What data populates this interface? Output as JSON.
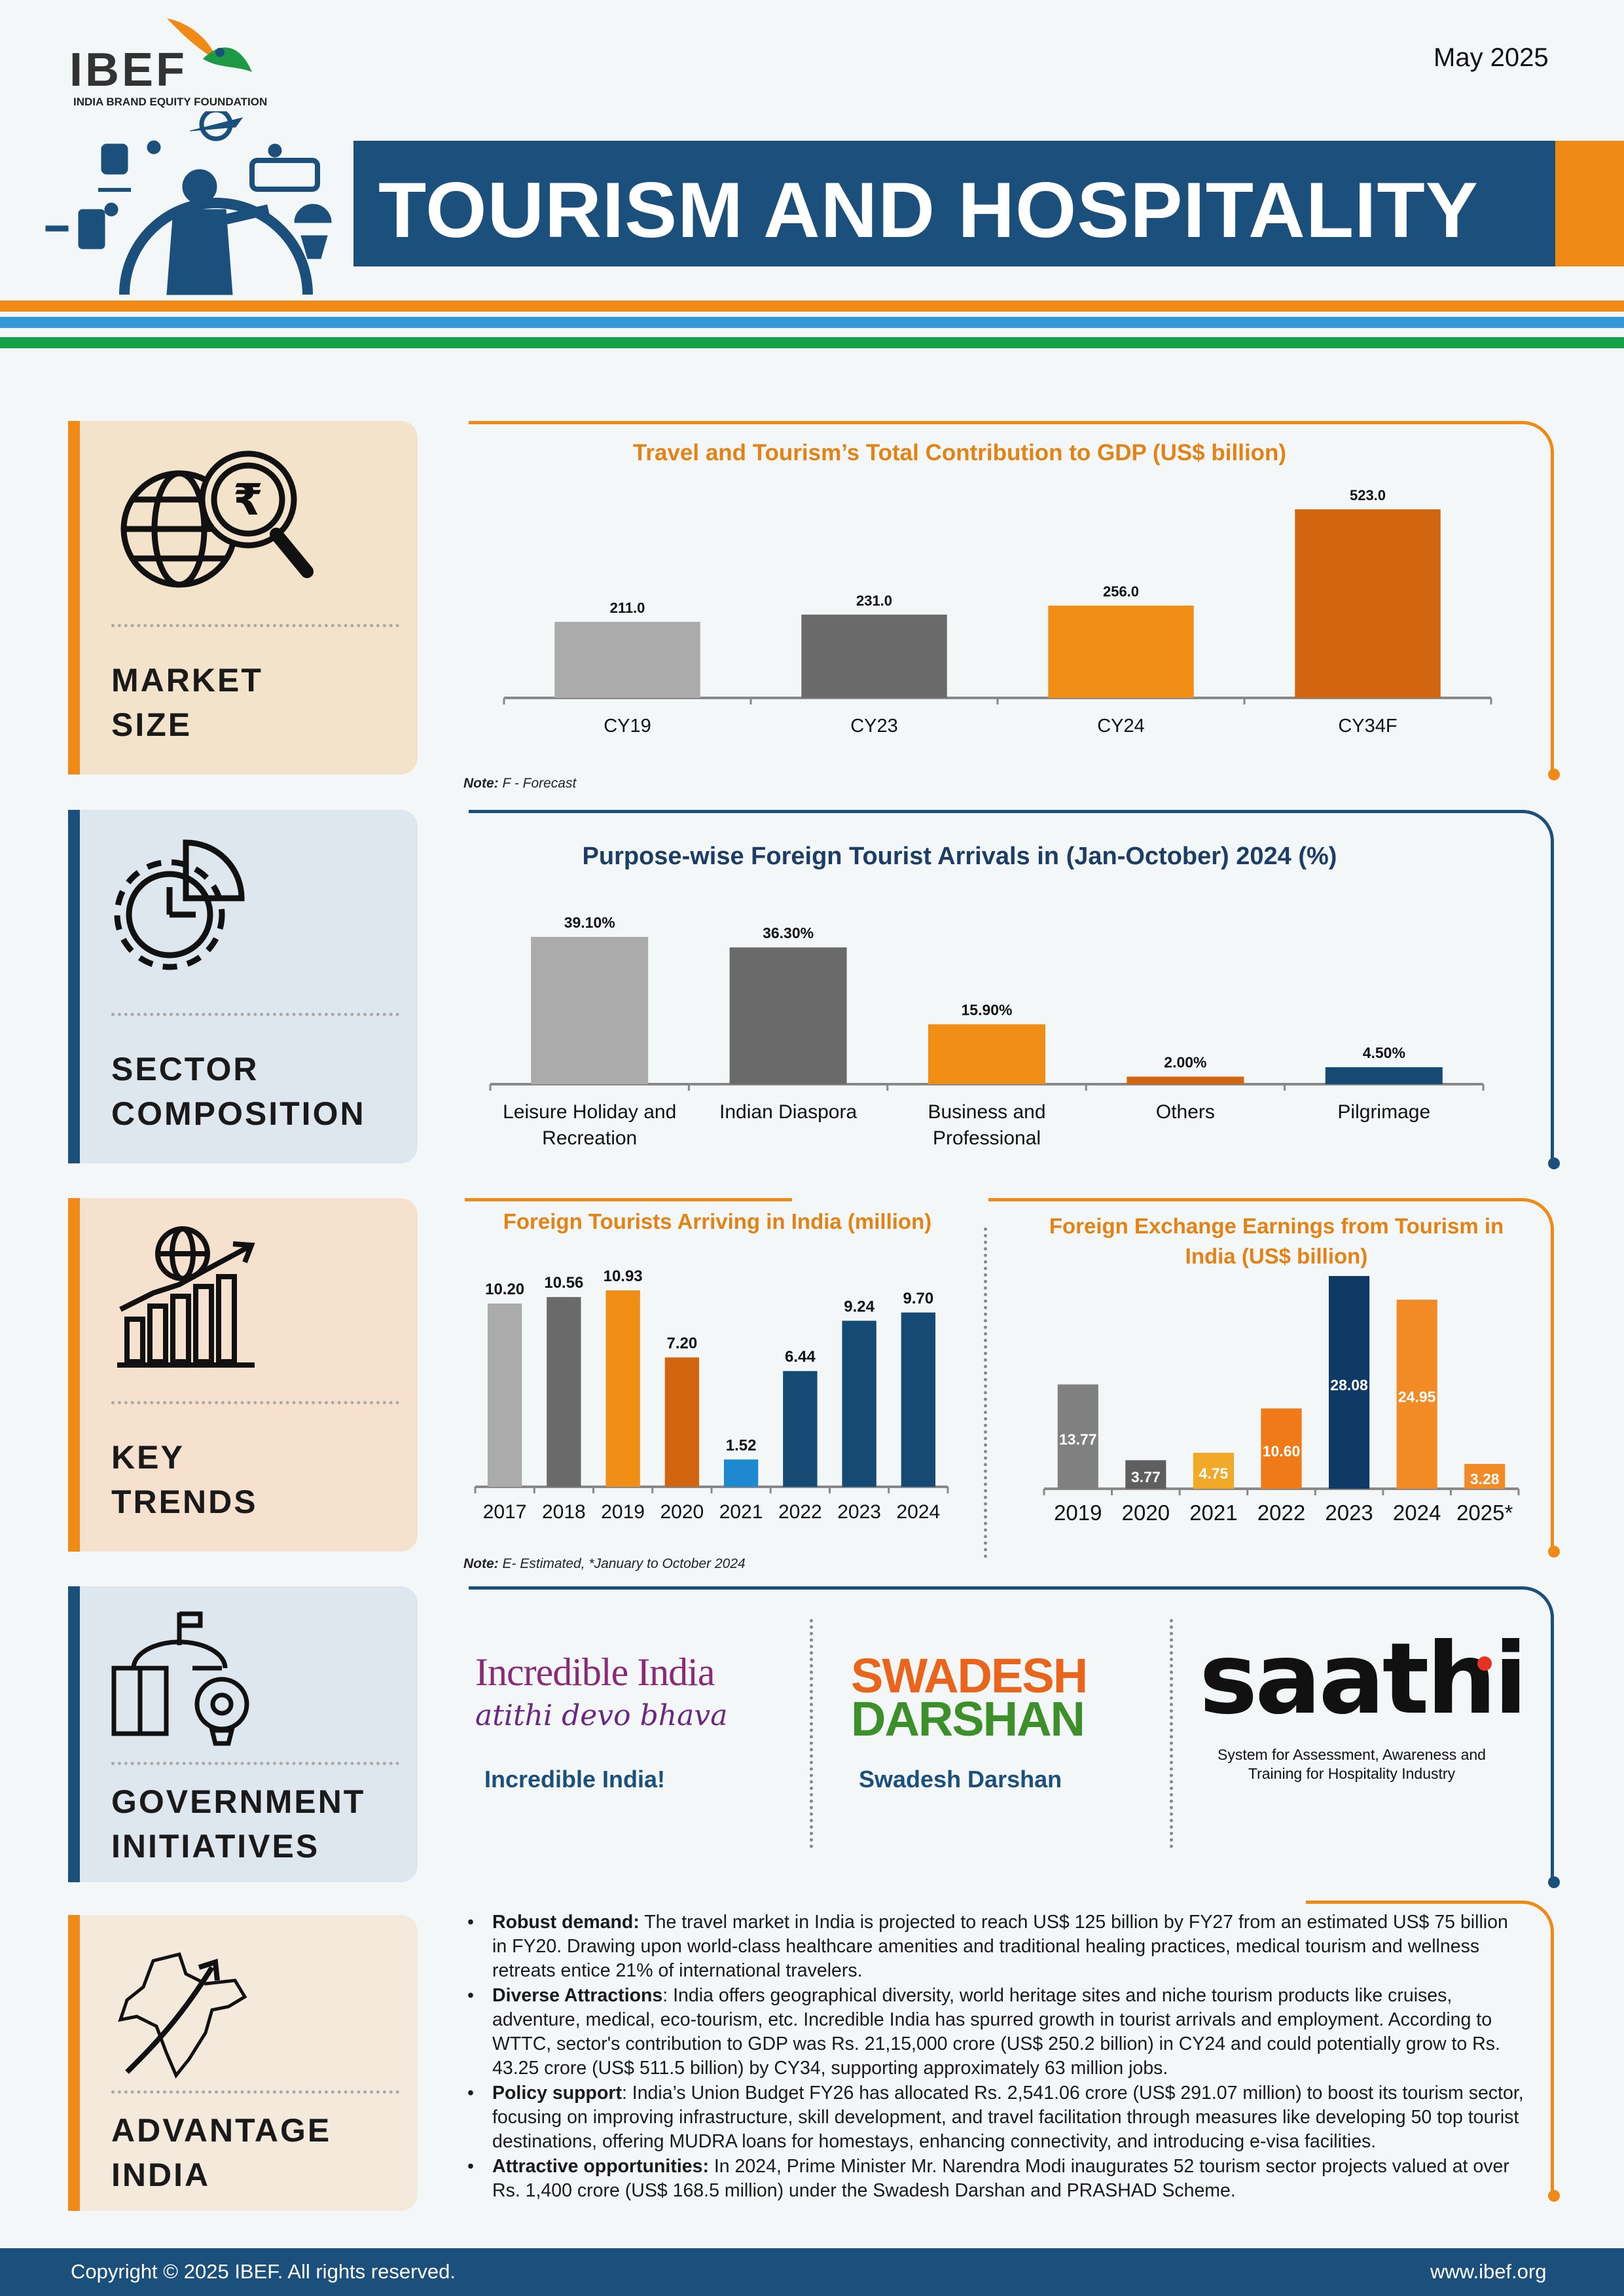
{
  "header": {
    "date": "May 2025",
    "logo_text": "IBEF",
    "logo_subtitle": "INDIA BRAND EQUITY FOUNDATION",
    "title": "TOURISM AND HOSPITALITY"
  },
  "colors": {
    "navy": "#1b4f7c",
    "orange": "#ef8a17",
    "dark_orange": "#d2650f",
    "light_grey": "#ababab",
    "dark_grey": "#6a6a6a",
    "blue_stripe": "#3399d6",
    "green_stripe": "#15a14a"
  },
  "sections": {
    "market_size": {
      "label_line1": "MARKET",
      "label_line2": "SIZE",
      "icon": "globe-magnifier-rupee-icon"
    },
    "sector_composition": {
      "label_line1": "SECTOR",
      "label_line2": "COMPOSITION",
      "icon": "gear-pie-icon"
    },
    "key_trends": {
      "label_line1": "KEY",
      "label_line2": "TRENDS",
      "icon": "globe-growth-chart-icon"
    },
    "government_initiatives": {
      "label_line1": "GOVERNMENT",
      "label_line2": "INITIATIVES",
      "icon": "building-lightbulb-icon"
    },
    "advantage_india": {
      "label_line1": "ADVANTAGE",
      "label_line2": "INDIA",
      "icon": "india-map-arrow-icon"
    }
  },
  "notes": {
    "market_size_label": "Note:",
    "market_size_text": "F - Forecast",
    "key_trends_label": "Note:",
    "key_trends_text": "E- Estimated, *January to October 2024"
  },
  "chart_data": [
    {
      "id": "gdp_contribution",
      "type": "bar",
      "title": "Travel and Tourism’s Total Contribution to GDP (US$ billion)",
      "categories": [
        "CY19",
        "CY23",
        "CY24",
        "CY34F"
      ],
      "values": [
        211.0,
        231.0,
        256.0,
        523.0
      ],
      "value_labels": [
        "211.0",
        "231.0",
        "256.0",
        "523.0"
      ],
      "colors": [
        "#ababab",
        "#6a6a6a",
        "#f18e16",
        "#d2650f"
      ],
      "ylim": [
        0,
        523
      ]
    },
    {
      "id": "purpose_arrivals",
      "type": "bar",
      "title": "Purpose-wise Foreign Tourist Arrivals in (Jan-October) 2024 (%)",
      "categories": [
        [
          "Leisure Holiday and",
          "Recreation"
        ],
        [
          "Indian Diaspora"
        ],
        [
          "Business and",
          "Professional"
        ],
        [
          "Others"
        ],
        [
          "Pilgrimage"
        ]
      ],
      "values": [
        39.1,
        36.3,
        15.9,
        2.0,
        4.5
      ],
      "value_labels": [
        "39.10%",
        "36.30%",
        "15.90%",
        "2.00%",
        "4.50%"
      ],
      "colors": [
        "#ababab",
        "#6a6a6a",
        "#f18e16",
        "#d2650f",
        "#144a74"
      ],
      "ylim": [
        0,
        39.1
      ]
    },
    {
      "id": "foreign_tourists",
      "type": "bar",
      "title": "Foreign Tourists Arriving in India (million)",
      "categories": [
        "2017",
        "2018",
        "2019",
        "2020",
        "2021",
        "2022",
        "2023",
        "2024"
      ],
      "values": [
        10.2,
        10.56,
        10.93,
        7.2,
        1.52,
        6.44,
        9.24,
        9.7
      ],
      "value_labels": [
        "10.20",
        "10.56",
        "10.93",
        "7.20",
        "1.52",
        "6.44",
        "9.24",
        "9.70"
      ],
      "colors": [
        "#ababab",
        "#6a6a6a",
        "#f18e16",
        "#d2650f",
        "#1e88d0",
        "#144a74",
        "#144a74",
        "#144a74"
      ],
      "ylim": [
        0,
        10.93
      ]
    },
    {
      "id": "fee_earnings",
      "type": "bar",
      "title": "Foreign Exchange Earnings from Tourism in India (US$ billion)",
      "categories": [
        "2019",
        "2020",
        "2021",
        "2022",
        "2023",
        "2024",
        "2025*"
      ],
      "values": [
        13.77,
        3.77,
        4.75,
        10.6,
        28.08,
        24.95,
        3.28
      ],
      "value_labels": [
        "13.77",
        "3.77",
        "4.75",
        "10.60",
        "28.08",
        "24.95",
        "3.28"
      ],
      "colors": [
        "#808080",
        "#5f5f5f",
        "#f2a928",
        "#f07a18",
        "#0f3a67",
        "#f28a26",
        "#f28a26"
      ],
      "ylim": [
        0,
        28.08
      ]
    }
  ],
  "initiatives": [
    {
      "logo_line1": "Incredible India",
      "logo_line2": "atithi devo bhava",
      "name": "Incredible India!"
    },
    {
      "logo_line1": "SWADESH",
      "logo_line2": "DARSHAN",
      "name": "Swadesh Darshan"
    },
    {
      "logo_line1": "saathi",
      "logo_line2": "System for Assessment, Awareness and",
      "logo_line3": "Training for Hospitality Industry"
    }
  ],
  "advantages": [
    {
      "heading": "Robust demand:",
      "text": " The travel market in India is projected to reach US$ 125 billion by FY27 from an estimated US$ 75 billion in FY20. Drawing upon world-class healthcare amenities and traditional healing practices, medical tourism and wellness retreats entice 21% of international travelers."
    },
    {
      "heading": "Diverse Attractions",
      "text": ": India offers geographical diversity, world heritage sites and niche tourism products like cruises, adventure, medical, eco-tourism, etc. Incredible India has spurred growth in tourist arrivals and employment. According to WTTC, sector's contribution to GDP was Rs. 21,15,000 crore (US$ 250.2 billion) in CY24 and could potentially grow to Rs. 43.25 crore (US$ 511.5 billion) by CY34, supporting approximately 63 million jobs."
    },
    {
      "heading": "Policy support",
      "text": ": India’s Union Budget FY26 has allocated Rs. 2,541.06 crore (US$ 291.07 million) to boost its tourism sector, focusing on improving infrastructure, skill development, and travel facilitation through measures like developing 50 top tourist destinations, offering MUDRA loans for homestays, enhancing connectivity, and introducing e-visa facilities."
    },
    {
      "heading": "Attractive opportunities:",
      "text": " In 2024, Prime Minister Mr. Narendra Modi inaugurates 52 tourism sector projects valued at over Rs. 1,400 crore (US$ 168.5 million) under the Swadesh Darshan and PRASHAD Scheme."
    }
  ],
  "footer": {
    "copyright": "Copyright © 2025 IBEF. All rights reserved.",
    "website": "www.ibef.org"
  }
}
